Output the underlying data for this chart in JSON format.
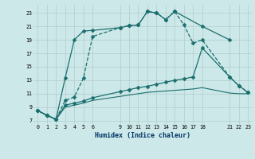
{
  "xlabel": "Humidex (Indice chaleur)",
  "background_color": "#cde8e8",
  "grid_color": "#b0cccc",
  "line_color": "#1a6e6e",
  "ylim": [
    6.5,
    24.2
  ],
  "xlim": [
    -0.5,
    23.5
  ],
  "yticks": [
    7,
    9,
    11,
    13,
    15,
    17,
    19,
    21,
    23
  ],
  "xticks": [
    0,
    1,
    2,
    3,
    4,
    5,
    6,
    9,
    10,
    11,
    12,
    13,
    14,
    15,
    16,
    17,
    18,
    21,
    22,
    23
  ],
  "series": [
    {
      "x": [
        0,
        1,
        2,
        3,
        4,
        5,
        6,
        9,
        10,
        11,
        12,
        13,
        14,
        15,
        18,
        21
      ],
      "y": [
        8.5,
        7.8,
        7.2,
        13.3,
        19.0,
        20.3,
        20.4,
        20.8,
        21.1,
        21.2,
        23.2,
        23.0,
        22.0,
        23.2,
        21.0,
        19.0
      ],
      "marker": "D",
      "ms": 2.5,
      "ls": "-",
      "lw": 0.9
    },
    {
      "x": [
        0,
        1,
        2,
        3,
        4,
        5,
        6,
        9,
        10,
        11,
        12,
        13,
        14,
        15,
        16,
        17,
        18,
        21,
        22,
        23
      ],
      "y": [
        8.5,
        7.8,
        7.2,
        10.0,
        10.5,
        13.3,
        19.5,
        20.8,
        21.1,
        21.2,
        23.2,
        23.0,
        22.0,
        23.2,
        21.2,
        18.5,
        19.0,
        13.5,
        12.2,
        11.2
      ],
      "marker": "D",
      "ms": 2.5,
      "ls": "--",
      "lw": 0.9
    },
    {
      "x": [
        0,
        1,
        2,
        3,
        4,
        5,
        6,
        9,
        10,
        11,
        12,
        13,
        14,
        15,
        16,
        17,
        18,
        21,
        22,
        23
      ],
      "y": [
        8.5,
        7.8,
        7.2,
        9.3,
        9.6,
        9.9,
        10.4,
        11.3,
        11.6,
        11.9,
        12.1,
        12.4,
        12.7,
        13.0,
        13.2,
        13.5,
        17.8,
        13.5,
        12.2,
        11.2
      ],
      "marker": "D",
      "ms": 2.5,
      "ls": "-",
      "lw": 0.9
    },
    {
      "x": [
        0,
        1,
        2,
        3,
        4,
        5,
        6,
        9,
        10,
        11,
        12,
        13,
        14,
        15,
        16,
        17,
        18,
        21,
        22,
        23
      ],
      "y": [
        8.5,
        7.8,
        7.2,
        9.0,
        9.3,
        9.6,
        10.0,
        10.6,
        10.8,
        11.0,
        11.2,
        11.3,
        11.4,
        11.5,
        11.6,
        11.7,
        11.9,
        11.1,
        11.0,
        11.0
      ],
      "marker": null,
      "ms": 0,
      "ls": "-",
      "lw": 0.8
    }
  ]
}
